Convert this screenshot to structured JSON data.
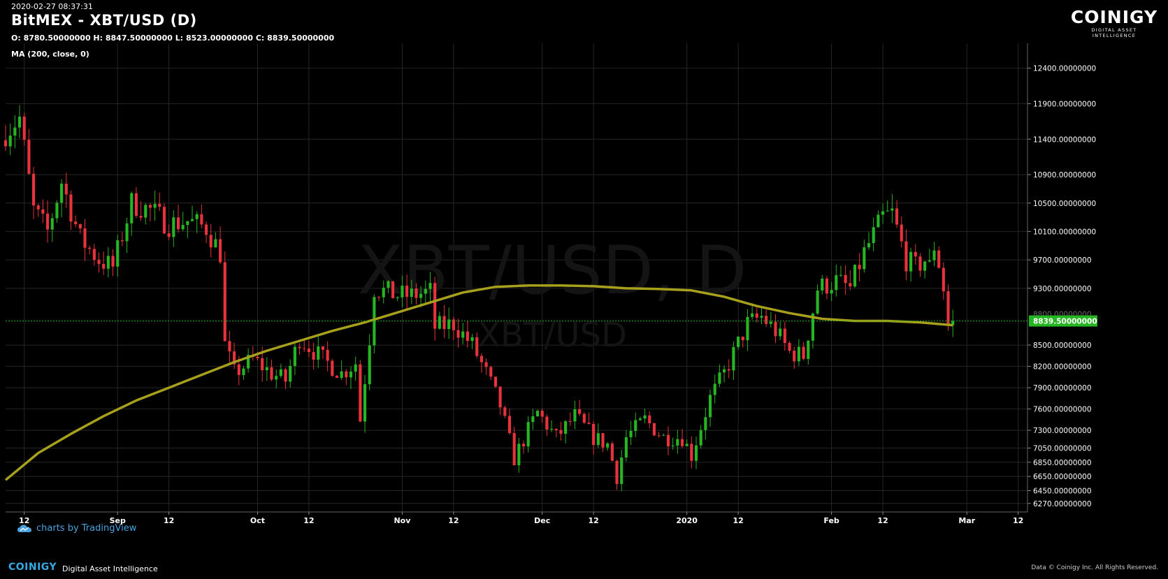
{
  "header": {
    "timestamp": "2020-02-27 08:37:31",
    "title": "BitMEX - XBT/USD (D)",
    "ohlc": "O: 8780.50000000 H: 8847.50000000 L: 8523.00000000 C: 8839.50000000",
    "indicator": "MA (200, close, 0)"
  },
  "logo": {
    "word": "COINIGY",
    "tagline": "DIGITAL ASSET INTELLIGENCE"
  },
  "watermark": {
    "big": "XBT/USD, D",
    "small": "XBT/USD"
  },
  "attribution": "charts by TradingView",
  "footer": {
    "brand": "COINIGY",
    "tagline": "Digital Asset Intelligence",
    "copyright": "Data © Coinigy Inc.  All Rights Reserved."
  },
  "colors": {
    "up": "#26b523",
    "down": "#e8323c",
    "ma": "#a6a01c",
    "grid": "#262626",
    "last_price": "#26b523",
    "accent": "#38a8e0"
  },
  "chart_data": {
    "type": "candlestick",
    "symbol": "XBT/USD",
    "exchange": "BitMEX",
    "interval": "D",
    "x_range": [
      "2019-08-08",
      "2020-03-14"
    ],
    "ylim": [
      6150,
      12750
    ],
    "price_tick_labels": [
      "12400.00000000",
      "11900.00000000",
      "11400.00000000",
      "10900.00000000",
      "10500.00000000",
      "10100.00000000",
      "9700.00000000",
      "9300.00000000",
      "8500.00000000",
      "8200.00000000",
      "7900.00000000",
      "7600.00000000",
      "7300.00000000",
      "7050.00000000",
      "6850.00000000",
      "6650.00000000",
      "6450.00000000",
      "6270.00000000"
    ],
    "price_tick_values": [
      12400,
      11900,
      11400,
      10900,
      10500,
      10100,
      9700,
      9300,
      8500,
      8200,
      7900,
      7600,
      7300,
      7050,
      6850,
      6650,
      6450,
      6270
    ],
    "time_ticks": [
      {
        "label": "12",
        "date": "2019-08-12"
      },
      {
        "label": "Sep",
        "date": "2019-09-01"
      },
      {
        "label": "12",
        "date": "2019-09-12"
      },
      {
        "label": "Oct",
        "date": "2019-10-01"
      },
      {
        "label": "12",
        "date": "2019-10-12"
      },
      {
        "label": "Nov",
        "date": "2019-11-01"
      },
      {
        "label": "12",
        "date": "2019-11-12"
      },
      {
        "label": "Dec",
        "date": "2019-12-01"
      },
      {
        "label": "12",
        "date": "2019-12-12"
      },
      {
        "label": "2020",
        "date": "2020-01-01"
      },
      {
        "label": "12",
        "date": "2020-01-12"
      },
      {
        "label": "Feb",
        "date": "2020-02-01"
      },
      {
        "label": "12",
        "date": "2020-02-12"
      },
      {
        "label": "Mar",
        "date": "2020-03-01"
      },
      {
        "label": "12",
        "date": "2020-03-12"
      }
    ],
    "last_price": 8839.5,
    "last_price_label": "8839.50000000",
    "ma_label": "8800.00000000",
    "ma_points": [
      [
        "2019-08-08",
        6600
      ],
      [
        "2019-08-15",
        6980
      ],
      [
        "2019-08-22",
        7250
      ],
      [
        "2019-08-29",
        7500
      ],
      [
        "2019-09-05",
        7720
      ],
      [
        "2019-09-12",
        7900
      ],
      [
        "2019-09-19",
        8080
      ],
      [
        "2019-09-26",
        8260
      ],
      [
        "2019-10-03",
        8420
      ],
      [
        "2019-10-10",
        8560
      ],
      [
        "2019-10-17",
        8700
      ],
      [
        "2019-10-24",
        8820
      ],
      [
        "2019-10-31",
        8960
      ],
      [
        "2019-11-07",
        9100
      ],
      [
        "2019-11-14",
        9240
      ],
      [
        "2019-11-21",
        9320
      ],
      [
        "2019-11-28",
        9340
      ],
      [
        "2019-12-05",
        9340
      ],
      [
        "2019-12-12",
        9330
      ],
      [
        "2019-12-19",
        9300
      ],
      [
        "2019-12-26",
        9290
      ],
      [
        "2020-01-02",
        9270
      ],
      [
        "2020-01-09",
        9180
      ],
      [
        "2020-01-16",
        9050
      ],
      [
        "2020-01-23",
        8950
      ],
      [
        "2020-01-30",
        8870
      ],
      [
        "2020-02-06",
        8840
      ],
      [
        "2020-02-13",
        8840
      ],
      [
        "2020-02-20",
        8820
      ],
      [
        "2020-02-27",
        8780
      ]
    ],
    "anchors": [
      [
        "2019-08-08",
        11500
      ],
      [
        "2019-08-11",
        11700
      ],
      [
        "2019-08-14",
        10400
      ],
      [
        "2019-08-17",
        10100
      ],
      [
        "2019-08-20",
        10800
      ],
      [
        "2019-08-24",
        10000
      ],
      [
        "2019-08-28",
        9700
      ],
      [
        "2019-08-31",
        9600
      ],
      [
        "2019-09-04",
        10500
      ],
      [
        "2019-09-08",
        10400
      ],
      [
        "2019-09-12",
        10200
      ],
      [
        "2019-09-16",
        10250
      ],
      [
        "2019-09-20",
        10150
      ],
      [
        "2019-09-23",
        9800
      ],
      [
        "2019-09-24",
        8500
      ],
      [
        "2019-09-26",
        8100
      ],
      [
        "2019-09-30",
        8300
      ],
      [
        "2019-10-04",
        8100
      ],
      [
        "2019-10-07",
        8000
      ],
      [
        "2019-10-10",
        8600
      ],
      [
        "2019-10-15",
        8300
      ],
      [
        "2019-10-19",
        8100
      ],
      [
        "2019-10-22",
        8250
      ],
      [
        "2019-10-23",
        7450
      ],
      [
        "2019-10-25",
        8600
      ],
      [
        "2019-10-26",
        9300
      ],
      [
        "2019-10-31",
        9200
      ],
      [
        "2019-11-03",
        9200
      ],
      [
        "2019-11-07",
        9250
      ],
      [
        "2019-11-08",
        8750
      ],
      [
        "2019-11-12",
        8800
      ],
      [
        "2019-11-16",
        8500
      ],
      [
        "2019-11-19",
        8100
      ],
      [
        "2019-11-22",
        7650
      ],
      [
        "2019-11-25",
        6900
      ],
      [
        "2019-11-28",
        7300
      ],
      [
        "2019-11-30",
        7550
      ],
      [
        "2019-12-04",
        7200
      ],
      [
        "2019-12-08",
        7500
      ],
      [
        "2019-12-12",
        7200
      ],
      [
        "2019-12-15",
        7100
      ],
      [
        "2019-12-17",
        6650
      ],
      [
        "2019-12-19",
        7200
      ],
      [
        "2019-12-23",
        7450
      ],
      [
        "2019-12-27",
        7200
      ],
      [
        "2019-12-31",
        7200
      ],
      [
        "2020-01-02",
        6950
      ],
      [
        "2020-01-04",
        7350
      ],
      [
        "2020-01-06",
        7750
      ],
      [
        "2020-01-09",
        8100
      ],
      [
        "2020-01-14",
        8800
      ],
      [
        "2020-01-17",
        8900
      ],
      [
        "2020-01-20",
        8700
      ],
      [
        "2020-01-23",
        8400
      ],
      [
        "2020-01-26",
        8350
      ],
      [
        "2020-01-29",
        9300
      ],
      [
        "2020-02-02",
        9400
      ],
      [
        "2020-02-05",
        9300
      ],
      [
        "2020-02-08",
        9800
      ],
      [
        "2020-02-12",
        10300
      ],
      [
        "2020-02-14",
        10350
      ],
      [
        "2020-02-17",
        9700
      ],
      [
        "2020-02-19",
        9600
      ],
      [
        "2020-02-21",
        9700
      ],
      [
        "2020-02-22",
        9600
      ],
      [
        "2020-02-23",
        9900
      ],
      [
        "2020-02-24",
        9650
      ],
      [
        "2020-02-25",
        9300
      ],
      [
        "2020-02-26",
        8780
      ],
      [
        "2020-02-27",
        8839.5
      ]
    ]
  }
}
